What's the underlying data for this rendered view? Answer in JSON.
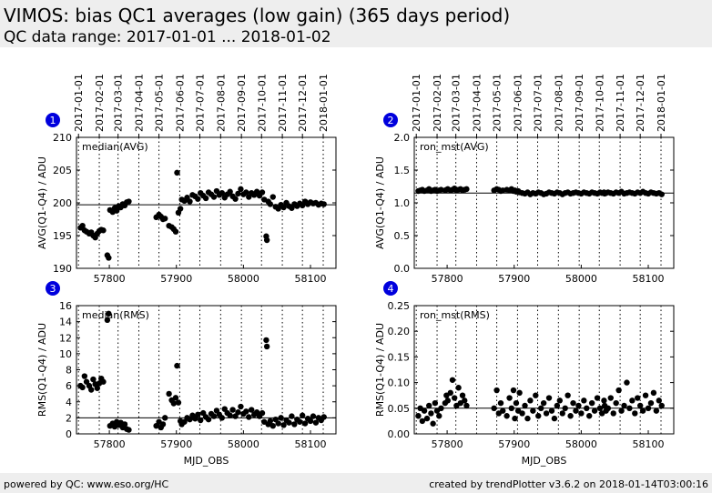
{
  "header": {
    "title": "VIMOS: bias QC1 averages (low gain) (365 days period)",
    "subtitle": "QC data range: 2017-01-01 ... 2018-01-02"
  },
  "footer": {
    "left": "powered by QC: www.eso.org/HC",
    "right": "created by trendPlotter v3.6.2 on 2018-01-14T03:00:16"
  },
  "chart_data": [
    {
      "type": "scatter",
      "panel": "1",
      "label": "median(AVG)",
      "ylabel": "AVG(Q1-Q4) / ADU",
      "color": "#000000",
      "grid": false,
      "xlim": [
        57751,
        58138
      ],
      "xticks": [
        57800,
        57900,
        58000,
        58100
      ],
      "x2ticks": [
        {
          "value": 57754,
          "label": "2017-01-01"
        },
        {
          "value": 57785,
          "label": "2017-02-01"
        },
        {
          "value": 57813,
          "label": "2017-03-01"
        },
        {
          "value": 57844,
          "label": "2017-04-01"
        },
        {
          "value": 57874,
          "label": "2017-05-01"
        },
        {
          "value": 57905,
          "label": "2017-06-01"
        },
        {
          "value": 57935,
          "label": "2017-07-01"
        },
        {
          "value": 57966,
          "label": "2017-08-01"
        },
        {
          "value": 57997,
          "label": "2017-09-01"
        },
        {
          "value": 58027,
          "label": "2017-10-01"
        },
        {
          "value": 58058,
          "label": "2017-11-01"
        },
        {
          "value": 58088,
          "label": "2017-12-01"
        },
        {
          "value": 58119,
          "label": "2018-01-01"
        }
      ],
      "ylim": [
        190,
        210
      ],
      "yticks": [
        190,
        195,
        200,
        205,
        210
      ],
      "ref_line": 199.7,
      "x": [
        57757,
        57760,
        57763,
        57766,
        57770,
        57773,
        57776,
        57779,
        57782,
        57785,
        57788,
        57791,
        57797,
        57799,
        57801,
        57805,
        57808,
        57811,
        57814,
        57817,
        57820,
        57823,
        57826,
        57829,
        57870,
        57874,
        57877,
        57880,
        57883,
        57889,
        57893,
        57896,
        57899,
        57901,
        57903,
        57906,
        57908,
        57912,
        57916,
        57920,
        57924,
        57928,
        57932,
        57936,
        57940,
        57944,
        57948,
        57952,
        57956,
        57960,
        57964,
        57968,
        57972,
        57976,
        57980,
        57984,
        57988,
        57992,
        57996,
        58000,
        58004,
        58008,
        58012,
        58016,
        58020,
        58024,
        58028,
        58031,
        58034,
        58035,
        58037,
        58040,
        58044,
        58048,
        58052,
        58056,
        58060,
        58064,
        58068,
        58072,
        58076,
        58080,
        58084,
        58088,
        58092,
        58096,
        58100,
        58104,
        58108,
        58112,
        58116,
        58120
      ],
      "values": [
        196.2,
        196.5,
        195.8,
        195.6,
        195.3,
        195.5,
        195.0,
        194.7,
        195.3,
        195.7,
        195.9,
        195.8,
        192.0,
        191.6,
        198.9,
        198.6,
        199.2,
        198.8,
        199.5,
        199.3,
        199.8,
        199.6,
        200.1,
        200.2,
        197.8,
        198.2,
        197.9,
        197.5,
        197.6,
        196.5,
        196.3,
        196.0,
        195.6,
        204.6,
        198.5,
        199.1,
        200.5,
        200.3,
        200.8,
        200.2,
        201.2,
        201.0,
        200.6,
        201.5,
        201.1,
        200.7,
        201.6,
        201.3,
        200.9,
        201.8,
        201.2,
        201.5,
        200.8,
        201.3,
        201.7,
        201.0,
        200.6,
        201.4,
        202.1,
        201.3,
        201.6,
        200.9,
        201.5,
        201.2,
        201.7,
        201.1,
        201.6,
        200.5,
        194.9,
        194.3,
        200.2,
        199.8,
        200.9,
        199.4,
        199.1,
        199.7,
        199.3,
        200.0,
        199.5,
        199.2,
        199.8,
        199.5,
        199.9,
        199.6,
        200.2,
        199.8,
        200.1,
        199.9,
        200.0,
        199.7,
        199.9,
        199.8
      ]
    },
    {
      "type": "scatter",
      "panel": "2",
      "label": "ron_mst(AVG)",
      "ylabel": "AVG(Q1-Q4) / ADU",
      "color": "#000000",
      "grid": false,
      "xlim": [
        57751,
        58138
      ],
      "xticks": [
        57800,
        57900,
        58000,
        58100
      ],
      "x2ticks": [
        {
          "value": 57754,
          "label": "2017-01-01"
        },
        {
          "value": 57785,
          "label": "2017-02-01"
        },
        {
          "value": 57813,
          "label": "2017-03-01"
        },
        {
          "value": 57844,
          "label": "2017-04-01"
        },
        {
          "value": 57874,
          "label": "2017-05-01"
        },
        {
          "value": 57905,
          "label": "2017-06-01"
        },
        {
          "value": 57935,
          "label": "2017-07-01"
        },
        {
          "value": 57966,
          "label": "2017-08-01"
        },
        {
          "value": 57997,
          "label": "2017-09-01"
        },
        {
          "value": 58027,
          "label": "2017-10-01"
        },
        {
          "value": 58058,
          "label": "2017-11-01"
        },
        {
          "value": 58088,
          "label": "2017-12-01"
        },
        {
          "value": 58119,
          "label": "2018-01-01"
        }
      ],
      "ylim": [
        0,
        2
      ],
      "yticks": [
        {
          "value": 0,
          "label": "0.0"
        },
        {
          "value": 0.5,
          "label": "0.5"
        },
        {
          "value": 1,
          "label": "1.0"
        },
        {
          "value": 1.5,
          "label": "1.5"
        },
        {
          "value": 2,
          "label": "2.0"
        }
      ],
      "ref_line": 1.15,
      "x": [
        57757,
        57760,
        57763,
        57766,
        57770,
        57773,
        57776,
        57779,
        57782,
        57785,
        57788,
        57791,
        57797,
        57799,
        57801,
        57805,
        57808,
        57811,
        57814,
        57817,
        57820,
        57823,
        57826,
        57829,
        57870,
        57874,
        57877,
        57880,
        57883,
        57889,
        57893,
        57896,
        57899,
        57901,
        57903,
        57906,
        57908,
        57912,
        57916,
        57920,
        57924,
        57928,
        57932,
        57936,
        57940,
        57944,
        57948,
        57952,
        57956,
        57960,
        57964,
        57968,
        57972,
        57976,
        57980,
        57984,
        57988,
        57992,
        57996,
        58000,
        58004,
        58008,
        58012,
        58016,
        58020,
        58024,
        58028,
        58031,
        58034,
        58035,
        58037,
        58040,
        58044,
        58048,
        58052,
        58056,
        58060,
        58064,
        58068,
        58072,
        58076,
        58080,
        58084,
        58088,
        58092,
        58096,
        58100,
        58104,
        58108,
        58112,
        58116,
        58120
      ],
      "values": [
        1.18,
        1.19,
        1.2,
        1.18,
        1.19,
        1.21,
        1.18,
        1.19,
        1.2,
        1.18,
        1.19,
        1.2,
        1.19,
        1.2,
        1.21,
        1.19,
        1.2,
        1.22,
        1.19,
        1.2,
        1.21,
        1.19,
        1.2,
        1.21,
        1.19,
        1.21,
        1.2,
        1.18,
        1.19,
        1.2,
        1.19,
        1.21,
        1.18,
        1.19,
        1.17,
        1.18,
        1.16,
        1.15,
        1.14,
        1.16,
        1.13,
        1.15,
        1.14,
        1.16,
        1.15,
        1.13,
        1.14,
        1.16,
        1.15,
        1.14,
        1.16,
        1.15,
        1.13,
        1.15,
        1.16,
        1.14,
        1.15,
        1.16,
        1.15,
        1.14,
        1.16,
        1.15,
        1.14,
        1.16,
        1.15,
        1.14,
        1.16,
        1.15,
        1.16,
        1.14,
        1.15,
        1.16,
        1.15,
        1.14,
        1.16,
        1.15,
        1.17,
        1.14,
        1.15,
        1.16,
        1.15,
        1.14,
        1.16,
        1.15,
        1.17,
        1.15,
        1.14,
        1.16,
        1.15,
        1.14,
        1.15,
        1.13
      ]
    },
    {
      "type": "scatter",
      "panel": "3",
      "label": "median(RMS)",
      "ylabel": "RMS(Q1-Q4) / ADU",
      "xlabel": "MJD_OBS",
      "color": "#000000",
      "grid": false,
      "xlim": [
        57751,
        58138
      ],
      "xticks": [
        57800,
        57900,
        58000,
        58100
      ],
      "ylim": [
        0,
        16
      ],
      "yticks": [
        0,
        2,
        4,
        6,
        8,
        10,
        12,
        14,
        16
      ],
      "ref_line": 2,
      "x": [
        57757,
        57760,
        57763,
        57766,
        57770,
        57773,
        57776,
        57779,
        57782,
        57785,
        57788,
        57791,
        57797,
        57799,
        57801,
        57805,
        57808,
        57811,
        57814,
        57817,
        57820,
        57823,
        57826,
        57829,
        57870,
        57874,
        57877,
        57880,
        57883,
        57889,
        57893,
        57896,
        57899,
        57901,
        57903,
        57906,
        57908,
        57912,
        57916,
        57920,
        57924,
        57928,
        57932,
        57936,
        57940,
        57944,
        57948,
        57952,
        57956,
        57960,
        57964,
        57968,
        57972,
        57976,
        57980,
        57984,
        57988,
        57992,
        57996,
        58000,
        58004,
        58008,
        58012,
        58016,
        58020,
        58024,
        58028,
        58031,
        58034,
        58035,
        58037,
        58040,
        58044,
        58048,
        58052,
        58056,
        58060,
        58064,
        58068,
        58072,
        58076,
        58080,
        58084,
        58088,
        58092,
        58096,
        58100,
        58104,
        58108,
        58112,
        58116,
        58120
      ],
      "values": [
        6.0,
        5.8,
        7.2,
        6.5,
        6.0,
        5.5,
        6.8,
        6.2,
        5.7,
        6.3,
        6.9,
        6.5,
        14.2,
        15.0,
        1.0,
        1.3,
        0.9,
        1.5,
        1.1,
        1.4,
        0.8,
        1.2,
        0.6,
        0.5,
        1.0,
        1.5,
        0.8,
        1.2,
        2.0,
        5.0,
        4.2,
        3.8,
        4.5,
        8.5,
        3.9,
        1.6,
        1.2,
        1.5,
        2.0,
        1.8,
        2.3,
        1.9,
        2.4,
        1.7,
        2.6,
        2.1,
        1.8,
        2.5,
        2.2,
        2.9,
        2.4,
        2.0,
        3.1,
        2.6,
        2.3,
        3.0,
        2.2,
        2.7,
        3.4,
        2.5,
        2.8,
        2.1,
        3.0,
        2.4,
        2.7,
        2.2,
        2.6,
        1.5,
        11.7,
        10.9,
        1.2,
        1.6,
        1.0,
        1.8,
        1.3,
        2.0,
        1.1,
        1.7,
        1.4,
        2.2,
        1.2,
        1.8,
        1.5,
        2.3,
        1.3,
        1.9,
        1.6,
        2.2,
        1.4,
        2.0,
        1.7,
        2.1
      ]
    },
    {
      "type": "scatter",
      "panel": "4",
      "label": "ron_mst(RMS)",
      "ylabel": "RMS(Q1-Q4) / ADU",
      "xlabel": "MJD_OBS",
      "color": "#000000",
      "grid": false,
      "xlim": [
        57751,
        58138
      ],
      "xticks": [
        57800,
        57900,
        58000,
        58100
      ],
      "ylim": [
        0,
        0.25
      ],
      "yticks": [
        {
          "value": 0,
          "label": "0.00"
        },
        {
          "value": 0.05,
          "label": "0.05"
        },
        {
          "value": 0.1,
          "label": "0.10"
        },
        {
          "value": 0.15,
          "label": "0.15"
        },
        {
          "value": 0.2,
          "label": "0.20"
        },
        {
          "value": 0.25,
          "label": "0.25"
        }
      ],
      "ref_line": 0.05,
      "x": [
        57757,
        57760,
        57763,
        57766,
        57770,
        57773,
        57776,
        57779,
        57782,
        57785,
        57788,
        57791,
        57797,
        57799,
        57801,
        57805,
        57808,
        57811,
        57814,
        57817,
        57820,
        57823,
        57826,
        57829,
        57870,
        57874,
        57877,
        57880,
        57883,
        57889,
        57893,
        57896,
        57899,
        57901,
        57903,
        57906,
        57908,
        57912,
        57916,
        57920,
        57924,
        57928,
        57932,
        57936,
        57940,
        57944,
        57948,
        57952,
        57956,
        57960,
        57964,
        57968,
        57972,
        57976,
        57980,
        57984,
        57988,
        57992,
        57996,
        58000,
        58004,
        58008,
        58012,
        58016,
        58020,
        58024,
        58028,
        58031,
        58034,
        58035,
        58037,
        58040,
        58044,
        58048,
        58052,
        58056,
        58060,
        58064,
        58068,
        58072,
        58076,
        58080,
        58084,
        58088,
        58092,
        58096,
        58100,
        58104,
        58108,
        58112,
        58116,
        58120
      ],
      "values": [
        0.035,
        0.05,
        0.025,
        0.045,
        0.03,
        0.055,
        0.04,
        0.02,
        0.06,
        0.045,
        0.035,
        0.05,
        0.06,
        0.075,
        0.065,
        0.08,
        0.105,
        0.07,
        0.055,
        0.09,
        0.06,
        0.075,
        0.065,
        0.055,
        0.05,
        0.085,
        0.04,
        0.06,
        0.045,
        0.035,
        0.07,
        0.05,
        0.085,
        0.03,
        0.06,
        0.045,
        0.08,
        0.04,
        0.055,
        0.03,
        0.065,
        0.045,
        0.075,
        0.035,
        0.05,
        0.06,
        0.04,
        0.07,
        0.045,
        0.03,
        0.055,
        0.065,
        0.04,
        0.05,
        0.075,
        0.035,
        0.06,
        0.045,
        0.055,
        0.04,
        0.065,
        0.05,
        0.035,
        0.06,
        0.045,
        0.07,
        0.05,
        0.04,
        0.065,
        0.055,
        0.045,
        0.05,
        0.07,
        0.04,
        0.06,
        0.085,
        0.045,
        0.055,
        0.1,
        0.05,
        0.065,
        0.04,
        0.07,
        0.055,
        0.045,
        0.075,
        0.05,
        0.06,
        0.08,
        0.045,
        0.065,
        0.055
      ]
    }
  ]
}
